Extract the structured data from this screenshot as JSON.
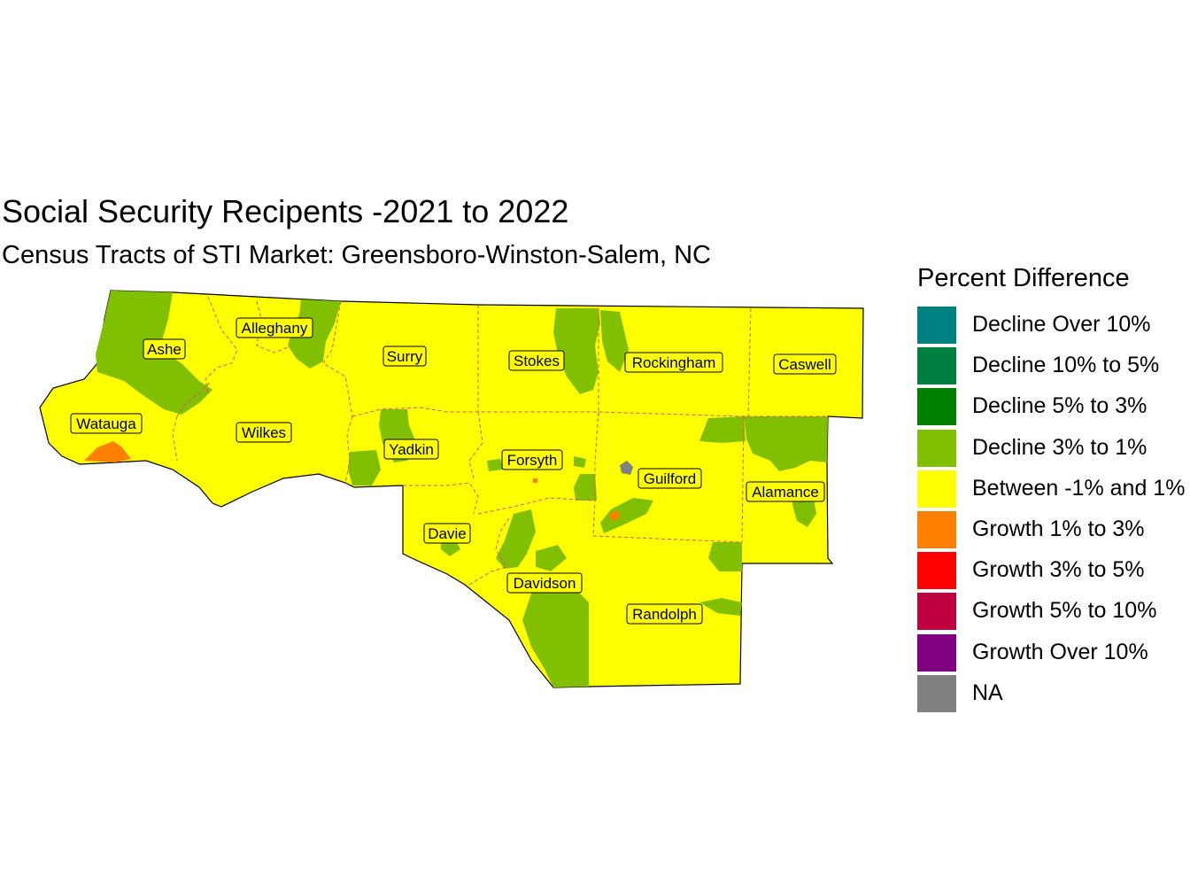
{
  "title": "Social Security Recipents -2021 to 2022",
  "subtitle": "Census Tracts of STI Market: Greensboro-Winston-Salem, NC",
  "legend": {
    "title": "Percent Difference",
    "items": [
      {
        "label": "Decline Over 10%",
        "color": "#008080"
      },
      {
        "label": "Decline 10% to 5%",
        "color": "#008040"
      },
      {
        "label": "Decline 5% to 3%",
        "color": "#008000"
      },
      {
        "label": "Decline 3% to 1%",
        "color": "#80C000"
      },
      {
        "label": "Between -1% and 1%",
        "color": "#FFFF00"
      },
      {
        "label": "Growth 1% to 3%",
        "color": "#FF8000"
      },
      {
        "label": "Growth 3% to 5%",
        "color": "#FF0000"
      },
      {
        "label": "Growth 5% to 10%",
        "color": "#C00040"
      },
      {
        "label": "Growth Over 10%",
        "color": "#800080"
      },
      {
        "label": "NA",
        "color": "#808080"
      }
    ]
  },
  "counties": [
    "Ashe",
    "Alleghany",
    "Surry",
    "Stokes",
    "Rockingham",
    "Caswell",
    "Watauga",
    "Wilkes",
    "Yadkin",
    "Forsyth",
    "Guilford",
    "Alamance",
    "Davie",
    "Davidson",
    "Randolph"
  ]
}
